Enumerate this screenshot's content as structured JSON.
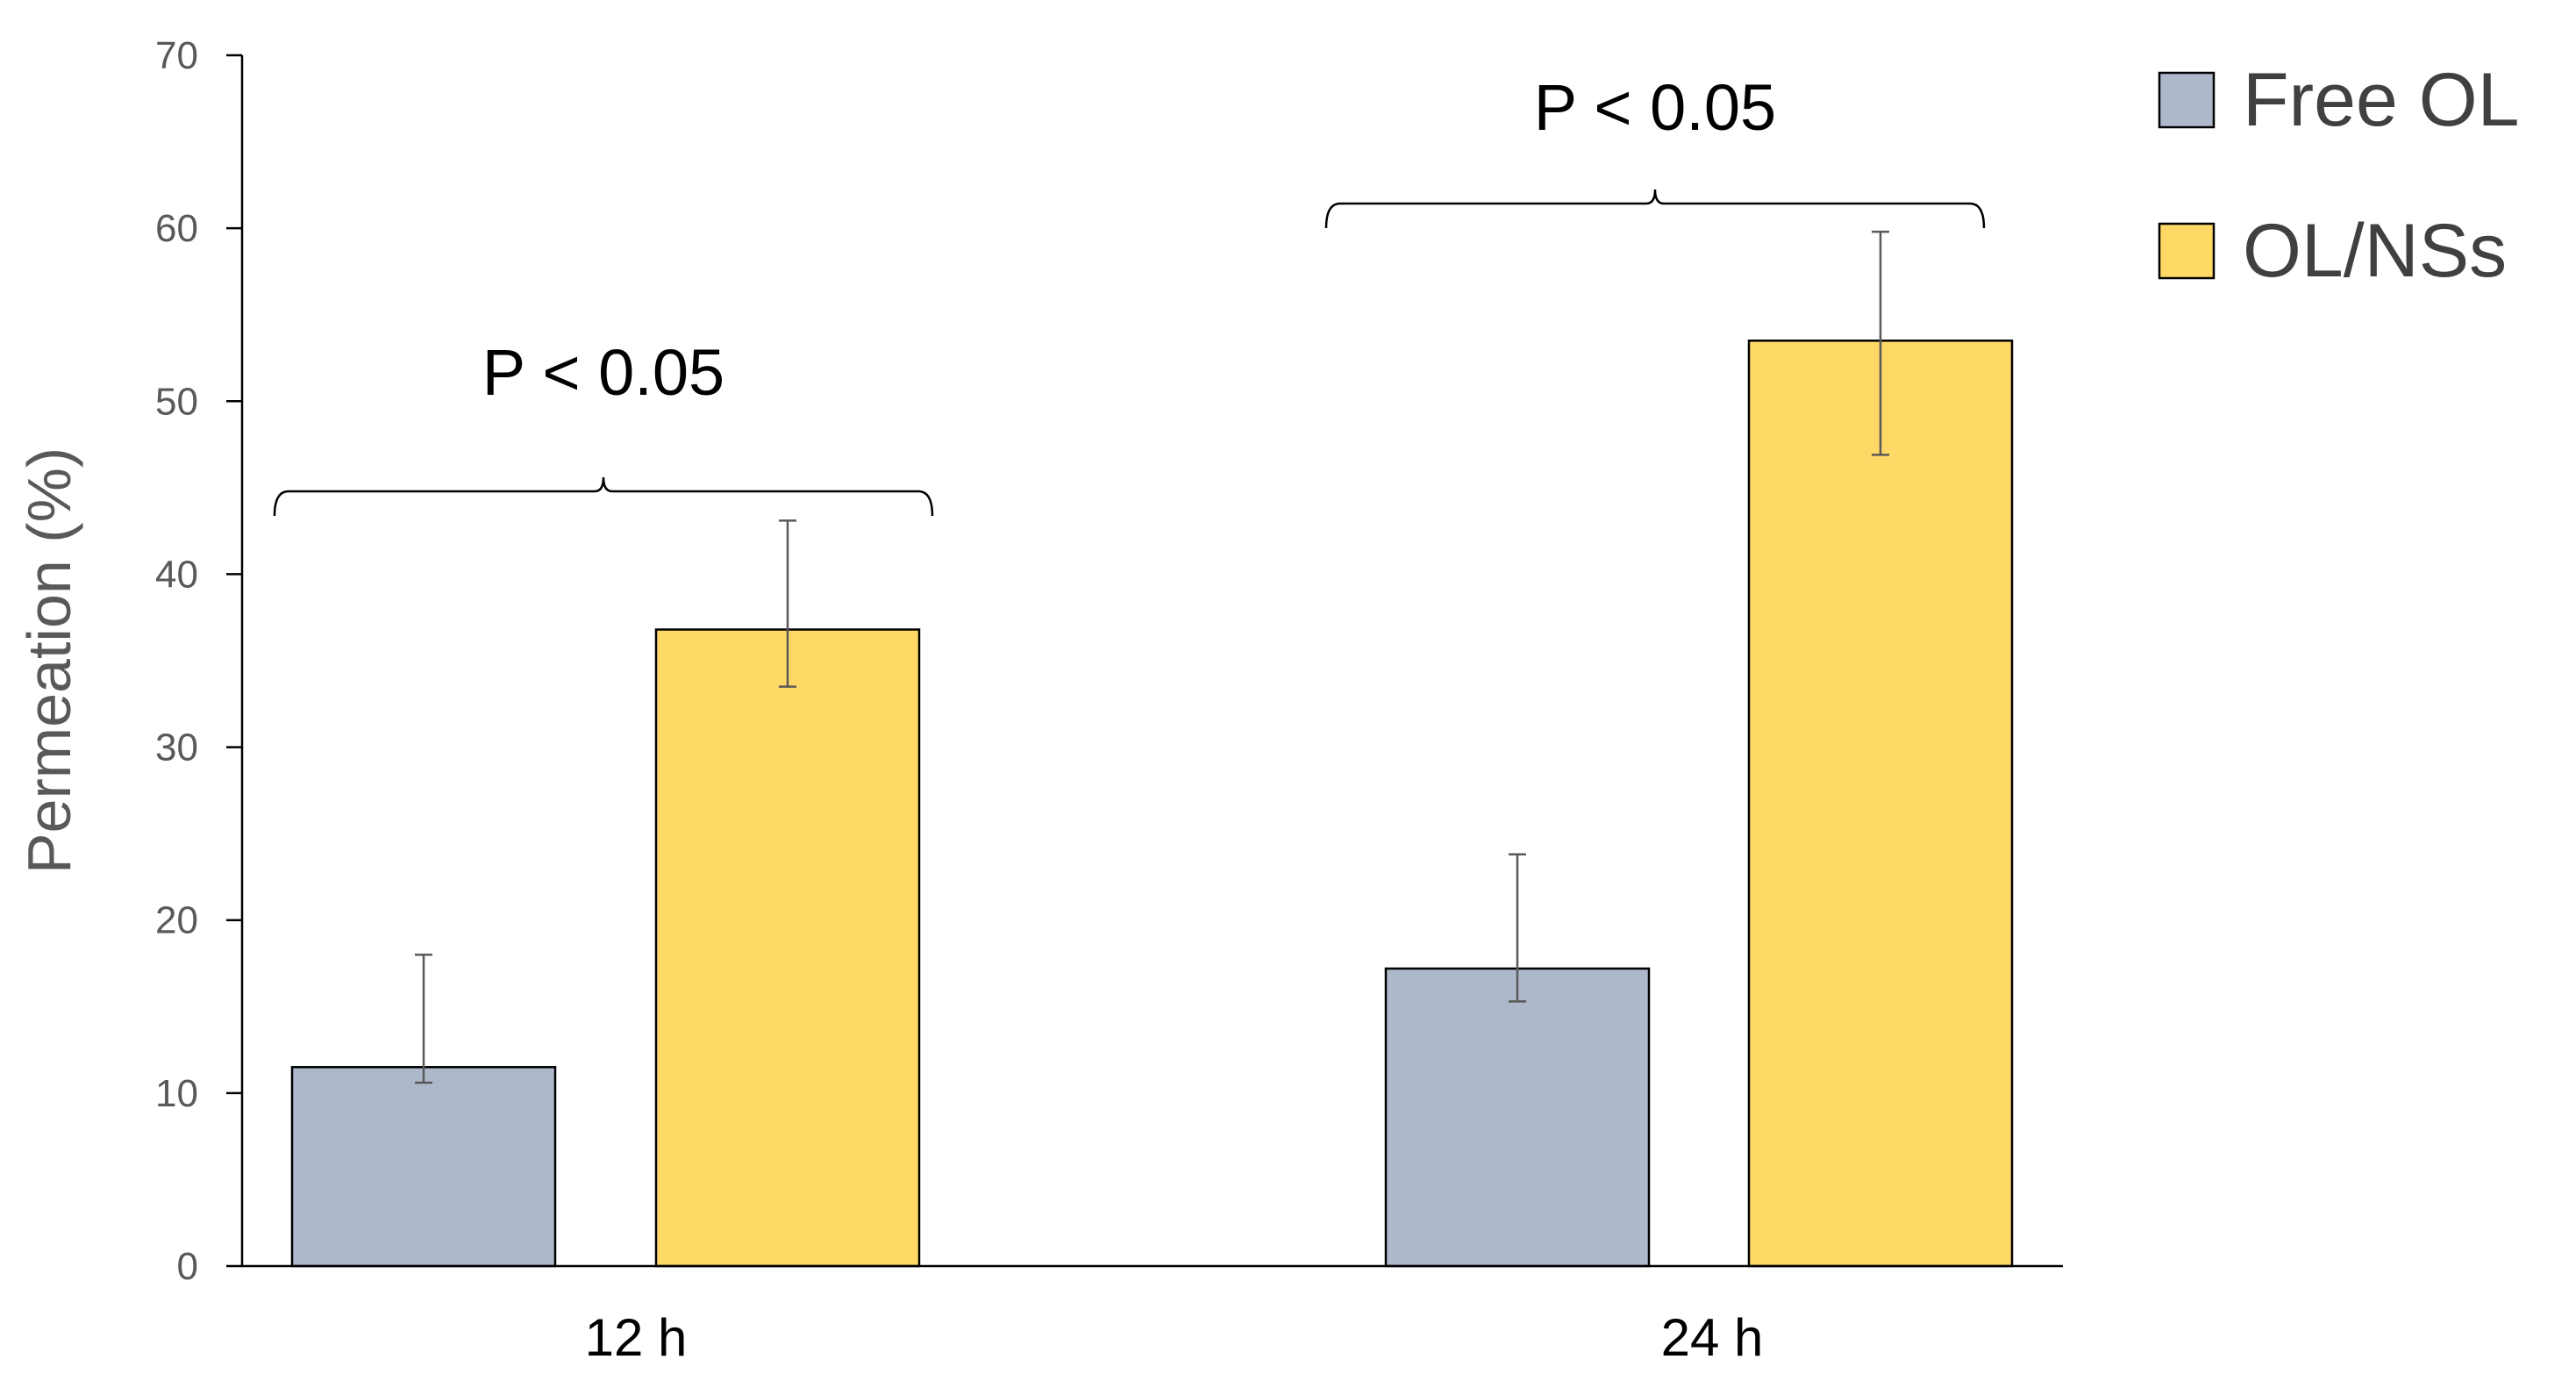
{
  "chart_data": {
    "type": "bar",
    "title": "",
    "xlabel": "",
    "ylabel": "Permeation (%)",
    "ylim": [
      0,
      70
    ],
    "yticks": [
      0,
      10,
      20,
      30,
      40,
      50,
      60,
      70
    ],
    "categories": [
      "12 h",
      "24 h"
    ],
    "grid": false,
    "legend_position": "top-right",
    "series": [
      {
        "name": "Free OL",
        "color": "#adb9ca",
        "values": [
          11.5,
          17.2
        ],
        "error_low": [
          10.6,
          15.3
        ],
        "error_high": [
          18.0,
          23.8
        ]
      },
      {
        "name": "OL/NSs",
        "color": "#ffd966",
        "values": [
          36.8,
          53.5
        ],
        "error_low": [
          33.5,
          46.9
        ],
        "error_high": [
          43.1,
          59.8
        ]
      }
    ],
    "annotations": [
      {
        "category": "12 h",
        "text": "P < 0.05"
      },
      {
        "category": "24 h",
        "text": "P < 0.05"
      }
    ]
  }
}
